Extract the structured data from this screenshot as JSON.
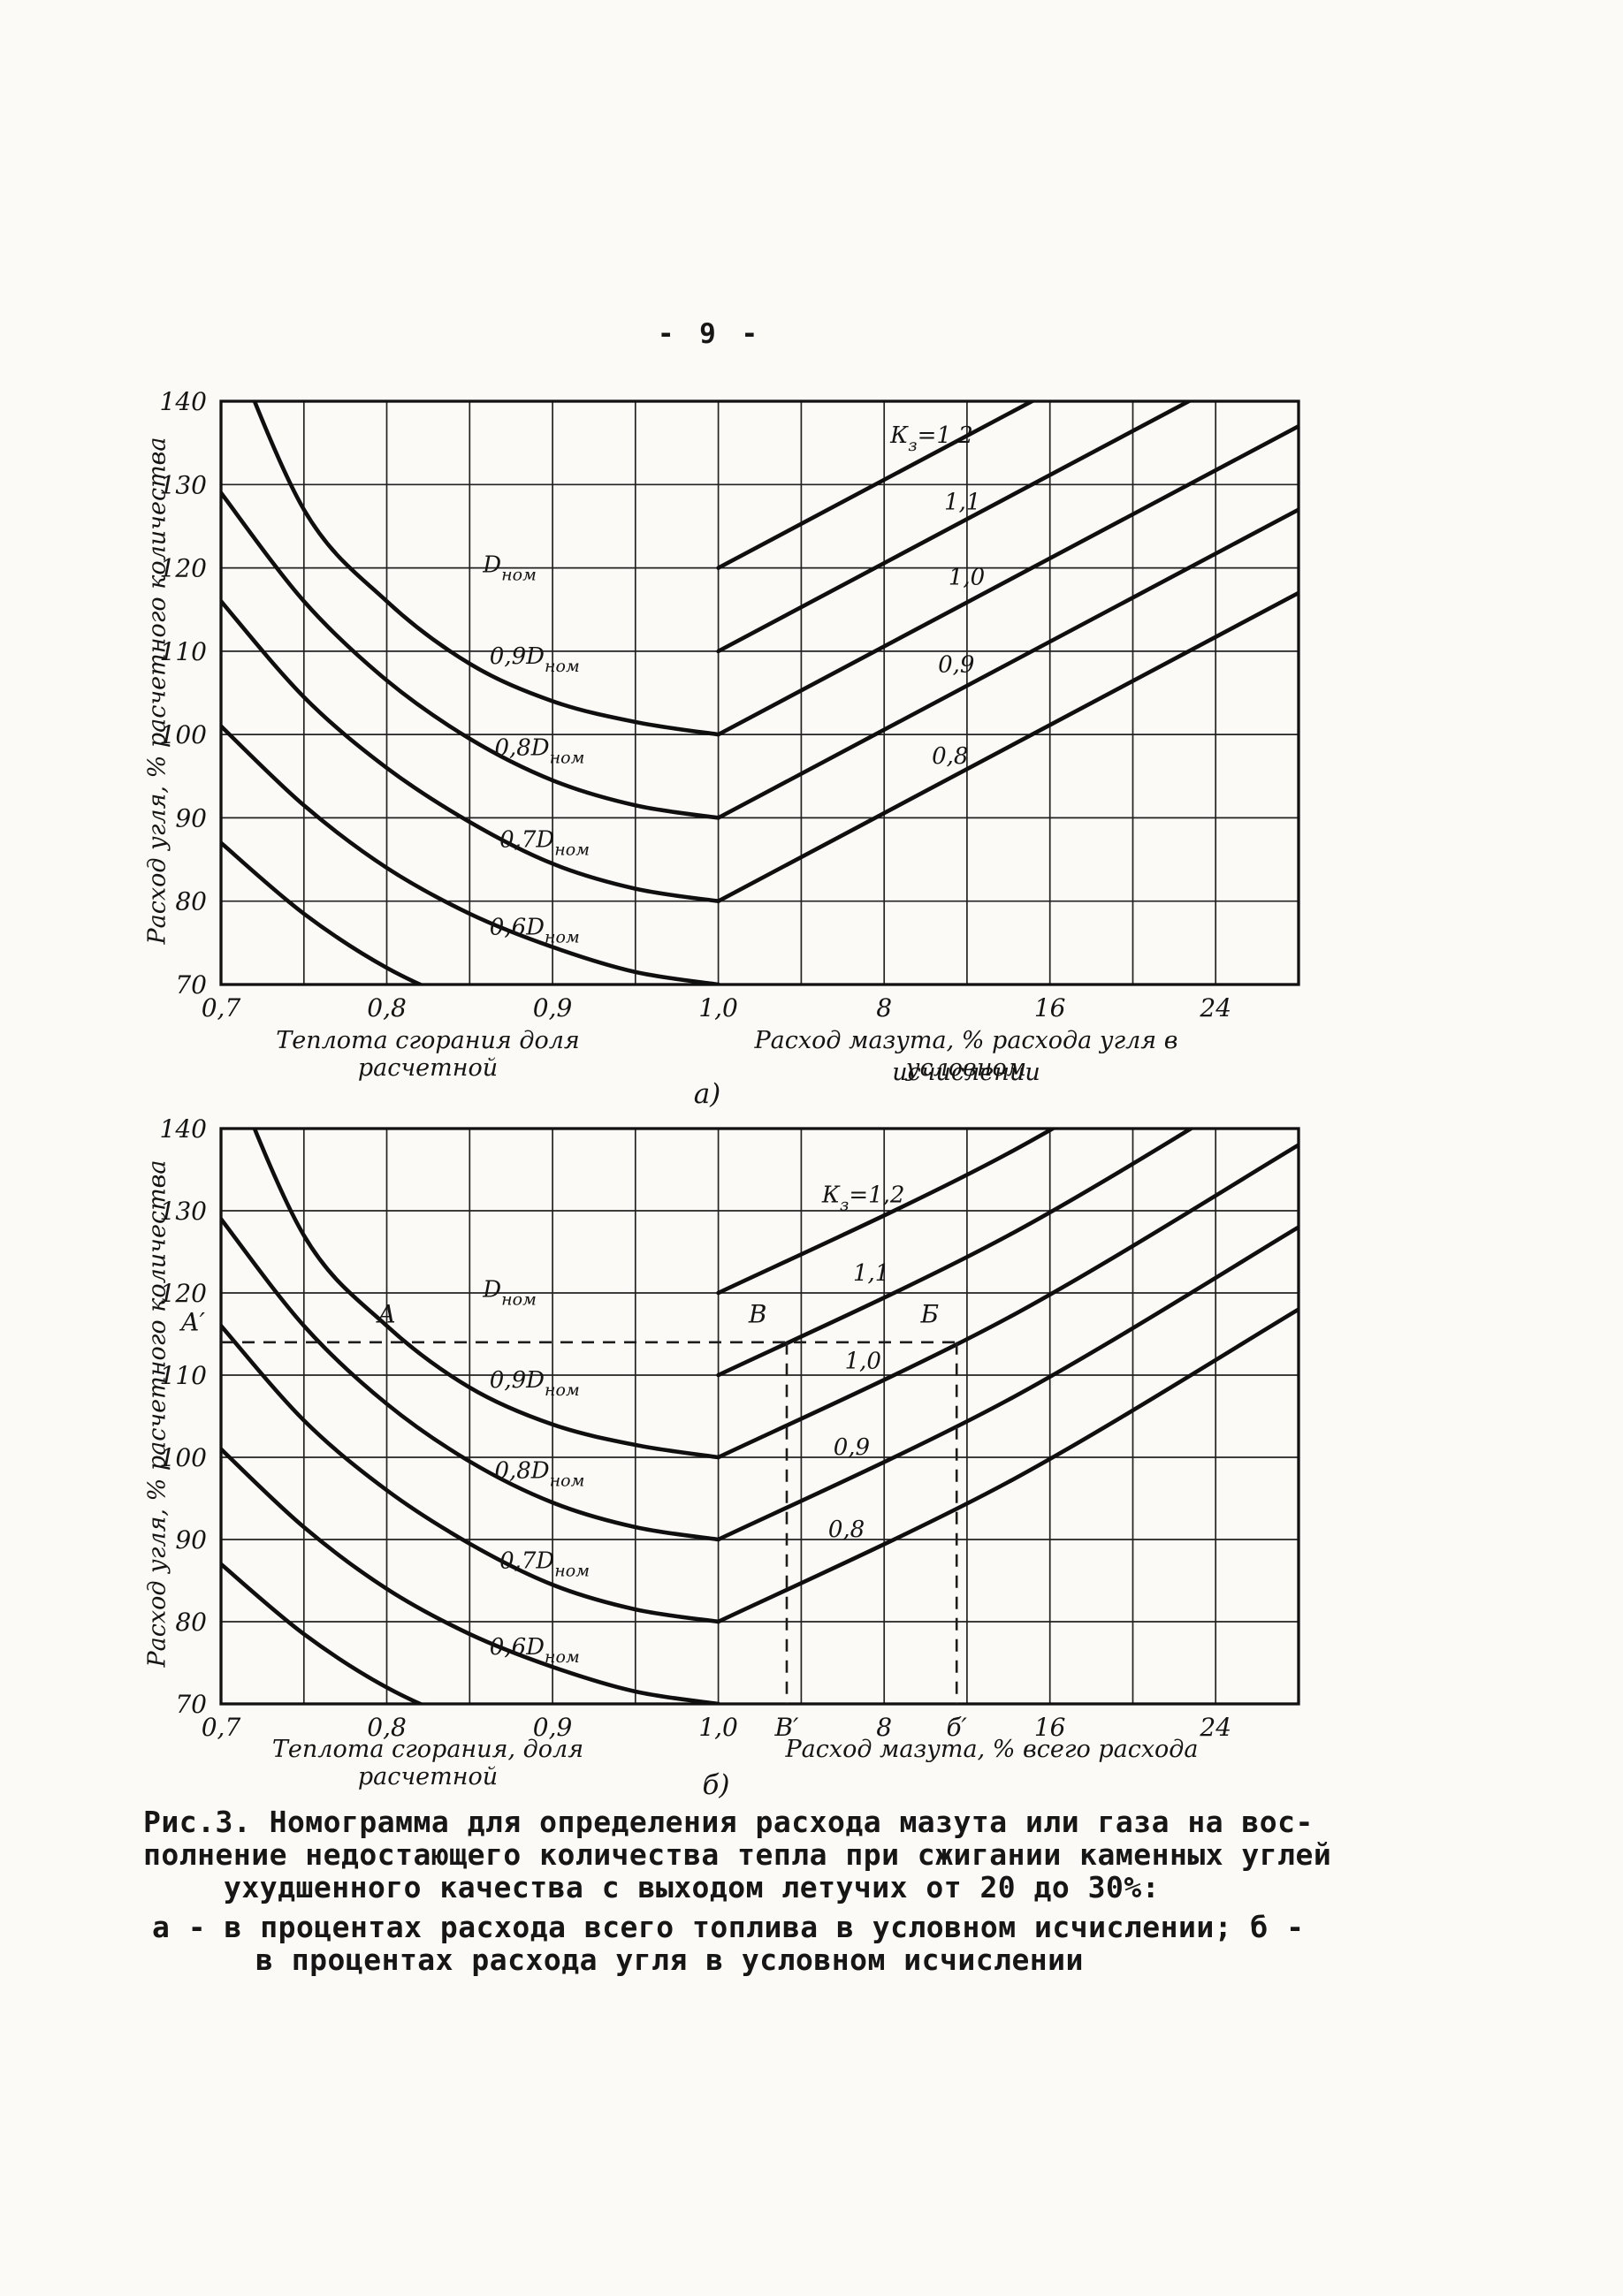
{
  "page": {
    "number": "- 9 -"
  },
  "figure_caption": {
    "lines": [
      "Рис.3. Номограмма для определения расхода мазута или газа на вос-",
      "полнение недостающего количества тепла при сжигании каменных углей",
      "ухудшенного качества с выходом летучих от 20 до 30%:",
      "а - в процентах расхода всего топлива в условном исчислении; б -",
      "в процентах расхода угля в условном исчислении"
    ]
  },
  "chart_data": [
    {
      "id": "a",
      "type": "line",
      "panel_label": "а)",
      "ylabel": "Расход угля, % расчетного количества",
      "xlabel_left": "Теплота сгорания доля расчетной",
      "xlabel_right": [
        "Расход мазута, % расхода угля в условном",
        "исчислении"
      ],
      "ylim": [
        70,
        140
      ],
      "y_ticks": [
        140,
        130,
        120,
        110,
        100,
        90,
        80,
        70
      ],
      "x_ticks_left": {
        "values": [
          0.7,
          0.8,
          0.9,
          1.0
        ],
        "labels": [
          "0,7",
          "0,8",
          "0,9",
          "1,0"
        ]
      },
      "x_ticks_right": {
        "values": [
          8,
          16,
          24
        ],
        "labels": [
          "8",
          "16",
          "24"
        ]
      },
      "heat_axis_range": [
        0.7,
        1.0
      ],
      "mazut_axis_range": [
        0,
        28
      ],
      "grid": true,
      "left_curves": [
        {
          "name": "Dном",
          "label_parts": [
            {
              "t": "D"
            },
            {
              "t": "ном",
              "sub": true
            }
          ],
          "label_at": [
            0.858,
            119.5
          ],
          "points": [
            [
              0.7,
              150
            ],
            [
              0.75,
              127
            ],
            [
              0.8,
              116
            ],
            [
              0.85,
              108.5
            ],
            [
              0.9,
              104
            ],
            [
              0.95,
              101.5
            ],
            [
              1.0,
              100
            ]
          ]
        },
        {
          "name": "0,9Dном",
          "label_parts": [
            {
              "t": "0,9"
            },
            {
              "t": "D"
            },
            {
              "t": "ном",
              "sub": true
            }
          ],
          "label_at": [
            0.862,
            108.5
          ],
          "points": [
            [
              0.7,
              129
            ],
            [
              0.75,
              116
            ],
            [
              0.8,
              106.5
            ],
            [
              0.85,
              99.5
            ],
            [
              0.9,
              94.5
            ],
            [
              0.95,
              91.5
            ],
            [
              1.0,
              90
            ]
          ]
        },
        {
          "name": "0,8Dном",
          "label_parts": [
            {
              "t": "0,8"
            },
            {
              "t": "D"
            },
            {
              "t": "ном",
              "sub": true
            }
          ],
          "label_at": [
            0.865,
            97.5
          ],
          "points": [
            [
              0.7,
              116
            ],
            [
              0.75,
              104.5
            ],
            [
              0.8,
              96
            ],
            [
              0.85,
              89.5
            ],
            [
              0.9,
              84.5
            ],
            [
              0.95,
              81.5
            ],
            [
              1.0,
              80
            ]
          ]
        },
        {
          "name": "0,7Dном",
          "label_parts": [
            {
              "t": "0,7"
            },
            {
              "t": "D"
            },
            {
              "t": "ном",
              "sub": true
            }
          ],
          "label_at": [
            0.868,
            86.5
          ],
          "points": [
            [
              0.7,
              101
            ],
            [
              0.75,
              91.5
            ],
            [
              0.8,
              84
            ],
            [
              0.85,
              78.5
            ],
            [
              0.9,
              74.5
            ],
            [
              0.95,
              71.5
            ],
            [
              1.0,
              70
            ]
          ]
        },
        {
          "name": "0,6Dном",
          "label_parts": [
            {
              "t": "0,6"
            },
            {
              "t": "D"
            },
            {
              "t": "ном",
              "sub": true
            }
          ],
          "label_at": [
            0.862,
            76
          ],
          "points": [
            [
              0.7,
              87
            ],
            [
              0.75,
              78.5
            ],
            [
              0.8,
              72
            ],
            [
              0.85,
              67.5
            ],
            [
              0.9,
              64
            ]
          ]
        }
      ],
      "right_lines": [
        {
          "name": "Кз=1,2",
          "label_parts": [
            {
              "t": "К"
            },
            {
              "t": "з",
              "sub": true
            },
            {
              "t": "=1,2"
            }
          ],
          "label_at": [
            8.3,
            135
          ],
          "points": [
            [
              0,
              120
            ],
            [
              28,
              157
            ]
          ]
        },
        {
          "name": "1,1",
          "label_parts": [
            {
              "t": "1,1"
            }
          ],
          "label_at": [
            10.9,
            127
          ],
          "points": [
            [
              0,
              110
            ],
            [
              28,
              147
            ]
          ]
        },
        {
          "name": "1,0",
          "label_parts": [
            {
              "t": "1,0"
            }
          ],
          "label_at": [
            11.1,
            118
          ],
          "points": [
            [
              0,
              100
            ],
            [
              28,
              137
            ]
          ]
        },
        {
          "name": "0,9",
          "label_parts": [
            {
              "t": "0,9"
            }
          ],
          "label_at": [
            10.6,
            107.5
          ],
          "points": [
            [
              0,
              90
            ],
            [
              28,
              127
            ]
          ]
        },
        {
          "name": "0,8",
          "label_parts": [
            {
              "t": "0,8"
            }
          ],
          "label_at": [
            10.3,
            96.5
          ],
          "points": [
            [
              0,
              80
            ],
            [
              28,
              117
            ]
          ]
        }
      ]
    },
    {
      "id": "b",
      "type": "line",
      "panel_label": "б)",
      "ylabel": "Расход угля, % расчетного количества",
      "xlabel_left": "Теплота сгорания, доля расчетной",
      "xlabel_right": [
        "Расход мазута, % всего расхода"
      ],
      "ylim": [
        70,
        140
      ],
      "y_ticks": [
        140,
        130,
        120,
        110,
        100,
        90,
        80,
        70
      ],
      "x_ticks_left": {
        "values": [
          0.7,
          0.8,
          0.9,
          1.0
        ],
        "labels": [
          "0,7",
          "0,8",
          "0,9",
          "1,0"
        ]
      },
      "x_ticks_right": {
        "values": [
          8,
          16,
          24
        ],
        "labels": [
          "8",
          "16",
          "24"
        ]
      },
      "heat_axis_range": [
        0.7,
        1.0
      ],
      "mazut_axis_range": [
        0,
        28
      ],
      "grid": true,
      "left_curves": [
        {
          "name": "Dном",
          "label_parts": [
            {
              "t": "D"
            },
            {
              "t": "ном",
              "sub": true
            }
          ],
          "label_at": [
            0.858,
            119.5
          ],
          "points": [
            [
              0.7,
              150
            ],
            [
              0.75,
              127
            ],
            [
              0.8,
              116
            ],
            [
              0.85,
              108.5
            ],
            [
              0.9,
              104
            ],
            [
              0.95,
              101.5
            ],
            [
              1.0,
              100
            ]
          ]
        },
        {
          "name": "0,9Dном",
          "label_parts": [
            {
              "t": "0,9"
            },
            {
              "t": "D"
            },
            {
              "t": "ном",
              "sub": true
            }
          ],
          "label_at": [
            0.862,
            108.5
          ],
          "points": [
            [
              0.7,
              129
            ],
            [
              0.75,
              116
            ],
            [
              0.8,
              106.5
            ],
            [
              0.85,
              99.5
            ],
            [
              0.9,
              94.5
            ],
            [
              0.95,
              91.5
            ],
            [
              1.0,
              90
            ]
          ]
        },
        {
          "name": "0,8Dном",
          "label_parts": [
            {
              "t": "0,8"
            },
            {
              "t": "D"
            },
            {
              "t": "ном",
              "sub": true
            }
          ],
          "label_at": [
            0.865,
            97.5
          ],
          "points": [
            [
              0.7,
              116
            ],
            [
              0.75,
              104.5
            ],
            [
              0.8,
              96
            ],
            [
              0.85,
              89.5
            ],
            [
              0.9,
              84.5
            ],
            [
              0.95,
              81.5
            ],
            [
              1.0,
              80
            ]
          ]
        },
        {
          "name": "0,7Dном",
          "label_parts": [
            {
              "t": "0,7"
            },
            {
              "t": "D"
            },
            {
              "t": "ном",
              "sub": true
            }
          ],
          "label_at": [
            0.868,
            86.5
          ],
          "points": [
            [
              0.7,
              101
            ],
            [
              0.75,
              91.5
            ],
            [
              0.8,
              84
            ],
            [
              0.85,
              78.5
            ],
            [
              0.9,
              74.5
            ],
            [
              0.95,
              71.5
            ],
            [
              1.0,
              70
            ]
          ]
        },
        {
          "name": "0,6Dном",
          "label_parts": [
            {
              "t": "0,6"
            },
            {
              "t": "D"
            },
            {
              "t": "ном",
              "sub": true
            }
          ],
          "label_at": [
            0.862,
            76
          ],
          "points": [
            [
              0.7,
              87
            ],
            [
              0.75,
              78.5
            ],
            [
              0.8,
              72
            ],
            [
              0.85,
              67.5
            ],
            [
              0.9,
              64
            ]
          ]
        }
      ],
      "right_lines": [
        {
          "name": "Кз=1,2",
          "label_parts": [
            {
              "t": "К"
            },
            {
              "t": "з",
              "sub": true
            },
            {
              "t": "=1,2"
            }
          ],
          "label_at": [
            5.0,
            131
          ],
          "points": [
            [
              0,
              120
            ],
            [
              14,
              137
            ],
            [
              28,
              158
            ]
          ]
        },
        {
          "name": "1,1",
          "label_parts": [
            {
              "t": "1,1"
            }
          ],
          "label_at": [
            6.5,
            121.5
          ],
          "points": [
            [
              0,
              110
            ],
            [
              14,
              127
            ],
            [
              28,
              148
            ]
          ]
        },
        {
          "name": "1,0",
          "label_parts": [
            {
              "t": "1,0"
            }
          ],
          "label_at": [
            6.1,
            110.8
          ],
          "points": [
            [
              0,
              100
            ],
            [
              14,
              117
            ],
            [
              28,
              138
            ]
          ]
        },
        {
          "name": "0,9",
          "label_parts": [
            {
              "t": "0,9"
            }
          ],
          "label_at": [
            5.55,
            100.3
          ],
          "points": [
            [
              0,
              90
            ],
            [
              14,
              107
            ],
            [
              28,
              128
            ]
          ]
        },
        {
          "name": "0,8",
          "label_parts": [
            {
              "t": "0,8"
            }
          ],
          "label_at": [
            5.3,
            90.3
          ],
          "points": [
            [
              0,
              80
            ],
            [
              14,
              97
            ],
            [
              28,
              118
            ]
          ]
        }
      ],
      "annotations": {
        "h_line": {
          "v": 114,
          "to_m": 11.5
        },
        "v_lines": [
          {
            "m": 3.3
          },
          {
            "m": 11.5
          }
        ],
        "point_labels": [
          {
            "text": "А′",
            "pos": "left-axis",
            "v": 116.5
          },
          {
            "text": "А",
            "q": 0.8,
            "v": 117.5
          },
          {
            "text": "В",
            "m": 1.9,
            "v": 117.5
          },
          {
            "text": "Б",
            "m": 10.2,
            "v": 117.5
          },
          {
            "text": "В′",
            "pos": "below-axis",
            "m": 3.3
          },
          {
            "text": "б′",
            "pos": "below-axis",
            "m": 11.5
          }
        ]
      }
    }
  ]
}
